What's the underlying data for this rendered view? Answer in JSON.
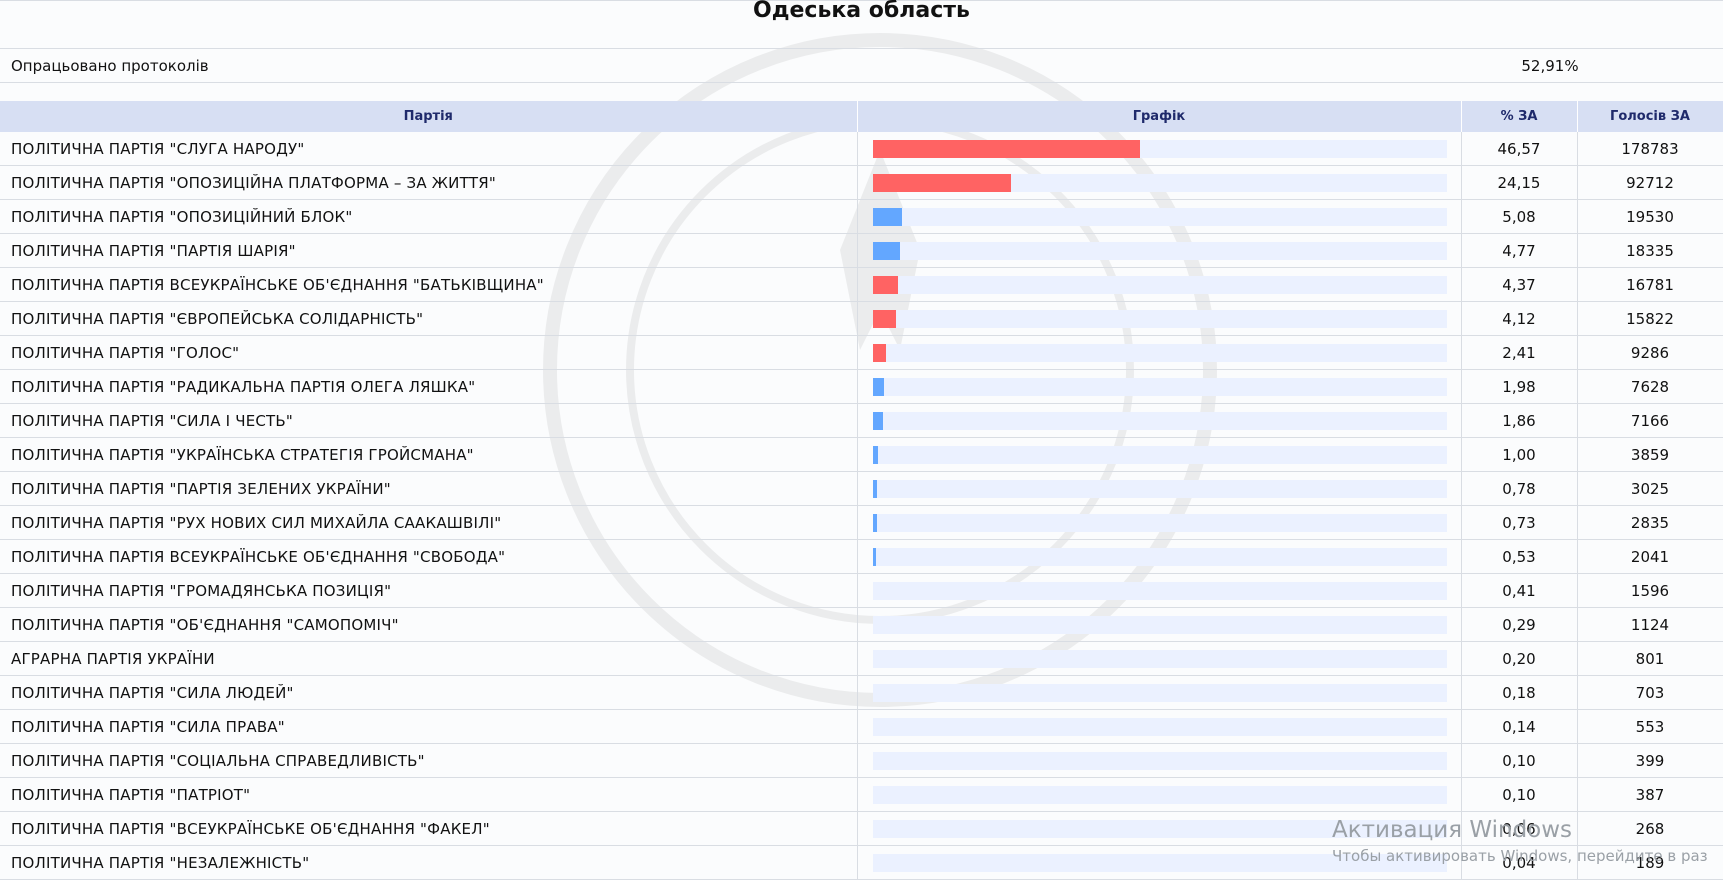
{
  "header": {
    "title": "Одеська область"
  },
  "processed": {
    "label": "Опрацьовано протоколів",
    "value": "52,91%"
  },
  "table": {
    "columns": {
      "party": "Партія",
      "chart": "Графік",
      "percent": "% ЗА",
      "votes": "Голосів ЗА"
    },
    "rows": [
      {
        "party": "ПОЛІТИЧНА ПАРТІЯ \"СЛУГА НАРОДУ\"",
        "percent": "46,57",
        "votes": "178783",
        "share": 46.57,
        "color": "#ff6363"
      },
      {
        "party": "ПОЛІТИЧНА ПАРТІЯ \"ОПОЗИЦІЙНА ПЛАТФОРМА – ЗА ЖИТТЯ\"",
        "percent": "24,15",
        "votes": "92712",
        "share": 24.15,
        "color": "#ff6363"
      },
      {
        "party": "ПОЛІТИЧНА ПАРТІЯ \"ОПОЗИЦІЙНИЙ БЛОК\"",
        "percent": "5,08",
        "votes": "19530",
        "share": 5.08,
        "color": "#63a7ff"
      },
      {
        "party": "ПОЛІТИЧНА ПАРТІЯ \"ПАРТІЯ ШАРІЯ\"",
        "percent": "4,77",
        "votes": "18335",
        "share": 4.77,
        "color": "#63a7ff"
      },
      {
        "party": "ПОЛІТИЧНА ПАРТІЯ ВСЕУКРАЇНСЬКЕ ОБ'ЄДНАННЯ \"БАТЬКІВЩИНА\"",
        "percent": "4,37",
        "votes": "16781",
        "share": 4.37,
        "color": "#ff6363"
      },
      {
        "party": "ПОЛІТИЧНА ПАРТІЯ \"ЄВРОПЕЙСЬКА СОЛІДАРНІСТЬ\"",
        "percent": "4,12",
        "votes": "15822",
        "share": 4.12,
        "color": "#ff6363"
      },
      {
        "party": "ПОЛІТИЧНА ПАРТІЯ \"ГОЛОС\"",
        "percent": "2,41",
        "votes": "9286",
        "share": 2.41,
        "color": "#ff6363"
      },
      {
        "party": "ПОЛІТИЧНА ПАРТІЯ \"РАДИКАЛЬНА ПАРТІЯ ОЛЕГА ЛЯШКА\"",
        "percent": "1,98",
        "votes": "7628",
        "share": 1.98,
        "color": "#63a7ff"
      },
      {
        "party": "ПОЛІТИЧНА ПАРТІЯ \"СИЛА І ЧЕСТЬ\"",
        "percent": "1,86",
        "votes": "7166",
        "share": 1.86,
        "color": "#63a7ff"
      },
      {
        "party": "ПОЛІТИЧНА ПАРТІЯ \"УКРАЇНСЬКА СТРАТЕГІЯ ГРОЙСМАНА\"",
        "percent": "1,00",
        "votes": "3859",
        "share": 1.0,
        "color": "#63a7ff"
      },
      {
        "party": "ПОЛІТИЧНА ПАРТІЯ \"ПАРТІЯ ЗЕЛЕНИХ УКРАЇНИ\"",
        "percent": "0,78",
        "votes": "3025",
        "share": 0.78,
        "color": "#63a7ff"
      },
      {
        "party": "ПОЛІТИЧНА ПАРТІЯ \"РУХ НОВИХ СИЛ МИХАЙЛА СААКАШВІЛІ\"",
        "percent": "0,73",
        "votes": "2835",
        "share": 0.73,
        "color": "#63a7ff"
      },
      {
        "party": "ПОЛІТИЧНА ПАРТІЯ ВСЕУКРАЇНСЬКЕ ОБ'ЄДНАННЯ \"СВОБОДА\"",
        "percent": "0,53",
        "votes": "2041",
        "share": 0.53,
        "color": "#63a7ff"
      },
      {
        "party": "ПОЛІТИЧНА ПАРТІЯ \"ГРОМАДЯНСЬКА ПОЗИЦІЯ\"",
        "percent": "0,41",
        "votes": "1596",
        "share": 0.41,
        "color": "#ebf1ff"
      },
      {
        "party": "ПОЛІТИЧНА ПАРТІЯ \"ОБ'ЄДНАННЯ \"САМОПОМІЧ\"",
        "percent": "0,29",
        "votes": "1124",
        "share": 0.29,
        "color": "#ebf1ff"
      },
      {
        "party": "АГРАРНА ПАРТІЯ УКРАЇНИ",
        "percent": "0,20",
        "votes": "801",
        "share": 0.2,
        "color": "#ebf1ff"
      },
      {
        "party": "ПОЛІТИЧНА ПАРТІЯ \"СИЛА ЛЮДЕЙ\"",
        "percent": "0,18",
        "votes": "703",
        "share": 0.18,
        "color": "#ebf1ff"
      },
      {
        "party": "ПОЛІТИЧНА ПАРТІЯ \"СИЛА ПРАВА\"",
        "percent": "0,14",
        "votes": "553",
        "share": 0.14,
        "color": "#ebf1ff"
      },
      {
        "party": "ПОЛІТИЧНА ПАРТІЯ \"СОЦІАЛЬНА СПРАВЕДЛИВІСТЬ\"",
        "percent": "0,10",
        "votes": "399",
        "share": 0.1,
        "color": "#ebf1ff"
      },
      {
        "party": "ПОЛІТИЧНА ПАРТІЯ \"ПАТРІОТ\"",
        "percent": "0,10",
        "votes": "387",
        "share": 0.1,
        "color": "#ebf1ff"
      },
      {
        "party": "ПОЛІТИЧНА ПАРТІЯ \"ВСЕУКРАЇНСЬКЕ ОБ'ЄДНАННЯ \"ФАКЕЛ\"",
        "percent": "0,06",
        "votes": "268",
        "share": 0.06,
        "color": "#ebf1ff"
      },
      {
        "party": "ПОЛІТИЧНА ПАРТІЯ \"НЕЗАЛЕЖНІСТЬ\"",
        "percent": "0,04",
        "votes": "189",
        "share": 0.04,
        "color": "#ebf1ff"
      }
    ]
  },
  "activation": {
    "title": "Активация Windows",
    "subtitle": "Чтобы активировать Windows, перейдите в раз"
  }
}
